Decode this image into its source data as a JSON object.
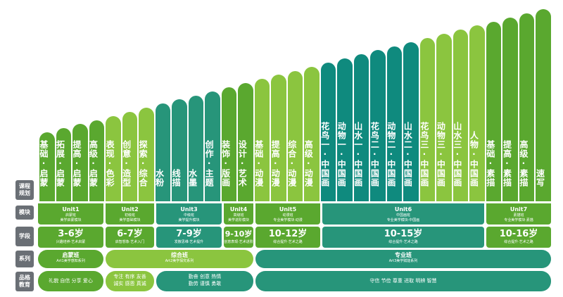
{
  "colors": {
    "green": "#5aa82f",
    "teal": "#27957a",
    "light_green": "#8bc53f",
    "dark_teal": "#0f8a7e",
    "gray": "#6a6f75"
  },
  "row_labels": [
    "课程\n规划",
    "模块",
    "学段",
    "系列",
    "品格\n教育"
  ],
  "courses": [
    [
      "启蒙",
      "基础"
    ],
    [
      "启蒙",
      "拓展"
    ],
    [
      "启蒙",
      "提高"
    ],
    [
      "启蒙",
      "高级"
    ],
    [
      "色彩",
      "表现"
    ],
    [
      "造型",
      "创意"
    ],
    [
      "综合",
      "探索"
    ],
    [
      "水粉"
    ],
    [
      "线描"
    ],
    [
      "水墨"
    ],
    [
      "主题",
      "创作"
    ],
    [
      "版画",
      "装饰"
    ],
    [
      "艺术",
      "设计"
    ],
    [
      "动漫",
      "基础"
    ],
    [
      "动漫",
      "提高"
    ],
    [
      "动漫",
      "综合"
    ],
    [
      "动漫",
      "高级"
    ],
    [
      "中国画",
      "花鸟一"
    ],
    [
      "中国画",
      "动物一"
    ],
    [
      "中国画",
      "山水一"
    ],
    [
      "中国画",
      "花鸟二"
    ],
    [
      "中国画",
      "动物二"
    ],
    [
      "中国画",
      "山水二"
    ],
    [
      "中国画",
      "花鸟三"
    ],
    [
      "中国画",
      "动物三"
    ],
    [
      "中国画",
      "山水三"
    ],
    [
      "中国画",
      "人物"
    ],
    [
      "素描",
      "基础"
    ],
    [
      "素描",
      "提高"
    ],
    [
      "素描",
      "高级"
    ],
    [
      "速写"
    ]
  ],
  "units": [
    {
      "title": "Unit1",
      "name": "启蒙班",
      "desc": "美学启蒙模块"
    },
    {
      "title": "Unit2",
      "name": "初级班",
      "desc": "美学基础模块"
    },
    {
      "title": "Unit3",
      "name": "中级班",
      "desc": "美学提升模块"
    },
    {
      "title": "Unit4",
      "name": "高级班",
      "desc": "美学进阶模块"
    },
    {
      "title": "Unit5",
      "name": "动漫班",
      "desc": "专业美学模块·动漫"
    },
    {
      "title": "Unit6",
      "name": "中国画班",
      "desc": "专业美学模块·中国画"
    },
    {
      "title": "Unit7",
      "name": "素描班",
      "desc": "专业美学模块·素描"
    }
  ],
  "ages": [
    {
      "age": "3-6岁",
      "desc": "兴趣培养·艺术启蒙"
    },
    {
      "age": "6-7岁",
      "desc": "启智想象·艺术入门"
    },
    {
      "age": "7-9岁",
      "desc": "发散思维·艺术提升"
    },
    {
      "age": "9-10岁",
      "desc": "创意表现·艺术进阶"
    },
    {
      "age": "10-12岁",
      "desc": "综合提升·艺术之路"
    },
    {
      "age": "10-15岁",
      "desc": "综合提升·艺术之路"
    },
    {
      "age": "10-16岁",
      "desc": "综合提升·艺术之路"
    }
  ],
  "series": [
    {
      "name": "启蒙班",
      "desc": "Art1美学感知系列"
    },
    {
      "name": "综合班",
      "desc": "Art2美学探究系列"
    },
    {
      "name": "专业班",
      "desc": "Art3美学赋能系列"
    }
  ],
  "quality": [
    "礼貌  自信  分享  爱心",
    "专注  有序  友善\n诚实  感恩  真诚",
    "勤奋  创意  热情\n勤劳  谨慎  勇敢",
    "守信  节俭  尊重  进取  明辨  智慧"
  ]
}
